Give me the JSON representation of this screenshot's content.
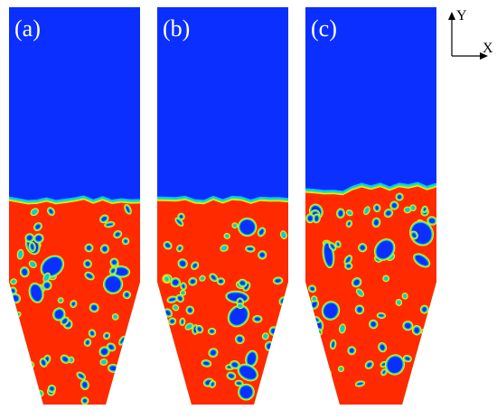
{
  "panels": [
    {
      "label": "(a)",
      "bed_height": 0.52,
      "seed": 3
    },
    {
      "label": "(b)",
      "bed_height": 0.52,
      "seed": 11
    },
    {
      "label": "(c)",
      "bed_height": 0.55,
      "seed": 23
    }
  ],
  "axes": {
    "y_label": "Y",
    "x_label": "X"
  },
  "colors": {
    "gas": "#0a2fff",
    "solid": "#ff2a00",
    "interface_inner": "#ffe600",
    "interface_mid": "#3df060",
    "interface_outer": "#00c8ff"
  }
}
